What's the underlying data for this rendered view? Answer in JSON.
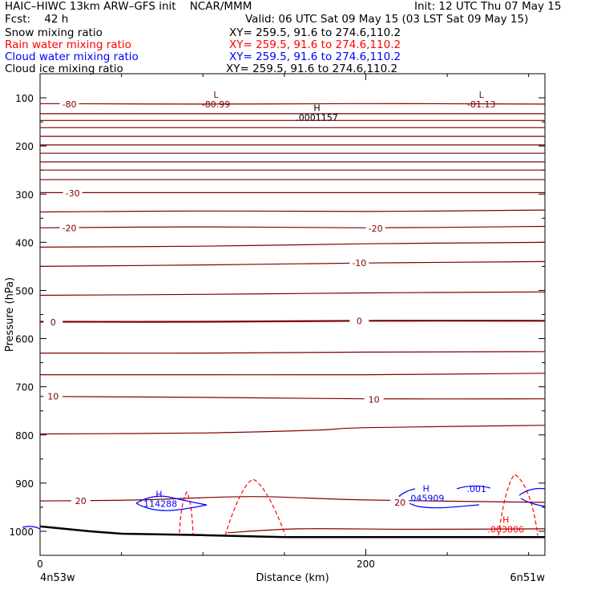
{
  "header": {
    "line1_left": "HAIC–HIWC 13km ARW–GFS init    NCAR/MMM",
    "line1_right": "Init: 12 UTC Thu 07 May 15",
    "line2_left": "Fcst:    42 h",
    "line2_right": "Valid: 06 UTC Sat 09 May 15 (03 LST Sat 09 May 15)",
    "rows": [
      {
        "label": "Snow mixing ratio",
        "xy": "XY= 259.5, 91.6 to 274.6,110.2",
        "color": "#000000"
      },
      {
        "label": "Rain water mixing ratio",
        "xy": "XY= 259.5, 91.6 to 274.6,110.2",
        "color": "#ff0000"
      },
      {
        "label": "Cloud water mixing ratio",
        "xy": "XY= 259.5, 91.6 to 274.6,110.2",
        "color": "#0000ff"
      },
      {
        "label": "Cloud ice mixing ratio",
        "xy": "XY= 259.5, 91.6 to 274.6,110.2",
        "color": "#000000"
      }
    ]
  },
  "chart_data": {
    "type": "line",
    "xlabel": "Distance (km)",
    "ylabel": "Pressure (hPa)",
    "xlim": [
      0,
      310
    ],
    "ylim": [
      1050,
      50
    ],
    "x_ticks": [
      0,
      200
    ],
    "y_ticks": [
      100,
      200,
      300,
      400,
      500,
      600,
      700,
      800,
      900,
      1000
    ],
    "x_tick_labels": [
      "0",
      "200"
    ],
    "y_tick_labels": [
      "100",
      "200",
      "300",
      "400",
      "500",
      "600",
      "700",
      "800",
      "900",
      "1000"
    ],
    "endpoint_labels": {
      "left": "4n53w",
      "right": "6n51w"
    },
    "colors": {
      "temperature": "#800000",
      "rain": "#ff0000",
      "cloud_water": "#0000ff",
      "terrain": "#000000"
    },
    "temperature_isotherms": [
      {
        "x": [
          0,
          100,
          200,
          310
        ],
        "y": [
          112,
          113,
          112,
          113
        ],
        "label": "-80"
      },
      {
        "x": [
          0,
          310
        ],
        "y": [
          133,
          133
        ]
      },
      {
        "x": [
          0,
          310
        ],
        "y": [
          147,
          147
        ]
      },
      {
        "x": [
          0,
          310
        ],
        "y": [
          162,
          162
        ]
      },
      {
        "x": [
          0,
          310
        ],
        "y": [
          180,
          180
        ]
      },
      {
        "x": [
          0,
          310
        ],
        "y": [
          198,
          198
        ]
      },
      {
        "x": [
          0,
          310
        ],
        "y": [
          215,
          215
        ]
      },
      {
        "x": [
          0,
          310
        ],
        "y": [
          233,
          233
        ]
      },
      {
        "x": [
          0,
          310
        ],
        "y": [
          250,
          250
        ]
      },
      {
        "x": [
          0,
          310
        ],
        "y": [
          270,
          270
        ]
      },
      {
        "x": [
          0,
          310
        ],
        "y": [
          297,
          297
        ],
        "label": "-30"
      },
      {
        "x": [
          0,
          100,
          200,
          310
        ],
        "y": [
          337,
          335,
          336,
          333
        ]
      },
      {
        "x": [
          0,
          100,
          200,
          310
        ],
        "y": [
          370,
          368,
          370,
          367
        ],
        "label": "-20"
      },
      {
        "x": [
          0,
          100,
          200,
          310
        ],
        "y": [
          410,
          408,
          403,
          400
        ]
      },
      {
        "x": [
          0,
          100,
          200,
          310
        ],
        "y": [
          450,
          447,
          443,
          440
        ],
        "label": "-10"
      },
      {
        "x": [
          0,
          100,
          200,
          310
        ],
        "y": [
          510,
          508,
          505,
          503
        ]
      },
      {
        "x": [
          0,
          100,
          200,
          310
        ],
        "y": [
          565,
          565,
          563,
          563
        ],
        "label": "0",
        "bold": true
      },
      {
        "x": [
          0,
          100,
          200,
          310
        ],
        "y": [
          630,
          630,
          628,
          627
        ]
      },
      {
        "x": [
          0,
          100,
          200,
          310
        ],
        "y": [
          675,
          675,
          675,
          672
        ]
      },
      {
        "x": [
          0,
          100,
          200,
          310
        ],
        "y": [
          720,
          722,
          725,
          725
        ],
        "label": "10"
      },
      {
        "x": [
          0,
          100,
          170,
          200,
          310
        ],
        "y": [
          798,
          796,
          790,
          785,
          780
        ]
      },
      {
        "x": [
          0,
          60,
          130,
          200,
          310
        ],
        "y": [
          937,
          935,
          928,
          935,
          940
        ],
        "label": "20"
      },
      {
        "x": [
          115,
          160,
          230,
          310
        ],
        "y": [
          1003,
          995,
          996,
          995
        ]
      }
    ],
    "contour_labels": [
      {
        "x": 18,
        "y": 113,
        "text": "-80"
      },
      {
        "x": 20,
        "y": 298,
        "text": "-30"
      },
      {
        "x": 18,
        "y": 370,
        "text": "-20"
      },
      {
        "x": 206,
        "y": 371,
        "text": "-20"
      },
      {
        "x": 196,
        "y": 443,
        "text": "-10"
      },
      {
        "x": 8,
        "y": 566,
        "text": "0"
      },
      {
        "x": 196,
        "y": 563,
        "text": "0"
      },
      {
        "x": 8,
        "y": 720,
        "text": "10"
      },
      {
        "x": 205,
        "y": 726,
        "text": "10"
      },
      {
        "x": 25,
        "y": 937,
        "text": "20"
      },
      {
        "x": 221,
        "y": 940,
        "text": "20"
      }
    ],
    "extrema": [
      {
        "x": 108,
        "y": 100,
        "kind": "L",
        "value": "-80.99",
        "color": "#800000"
      },
      {
        "x": 271,
        "y": 100,
        "kind": "L",
        "value": "-81.13",
        "color": "#800000"
      },
      {
        "x": 170,
        "y": 127,
        "kind": "H",
        "value": ".0001157",
        "color": "#000000"
      },
      {
        "x": 73,
        "y": 929,
        "kind": "H",
        "value": ".114288",
        "color": "#0000ff"
      },
      {
        "x": 237,
        "y": 918,
        "kind": "H",
        "value": ".045909",
        "color": "#0000ff"
      },
      {
        "x": 286,
        "y": 983,
        "kind": "H",
        "value": ".003806",
        "color": "#ff0000"
      }
    ],
    "cloud_water_labels": [
      {
        "x": 268,
        "y": 912,
        "text": ".001"
      }
    ],
    "terrain": {
      "x": [
        0,
        15,
        30,
        50,
        100,
        150,
        200,
        250,
        310
      ],
      "y": [
        990,
        995,
        1000,
        1005,
        1008,
        1012,
        1012,
        1012,
        1012
      ]
    }
  }
}
